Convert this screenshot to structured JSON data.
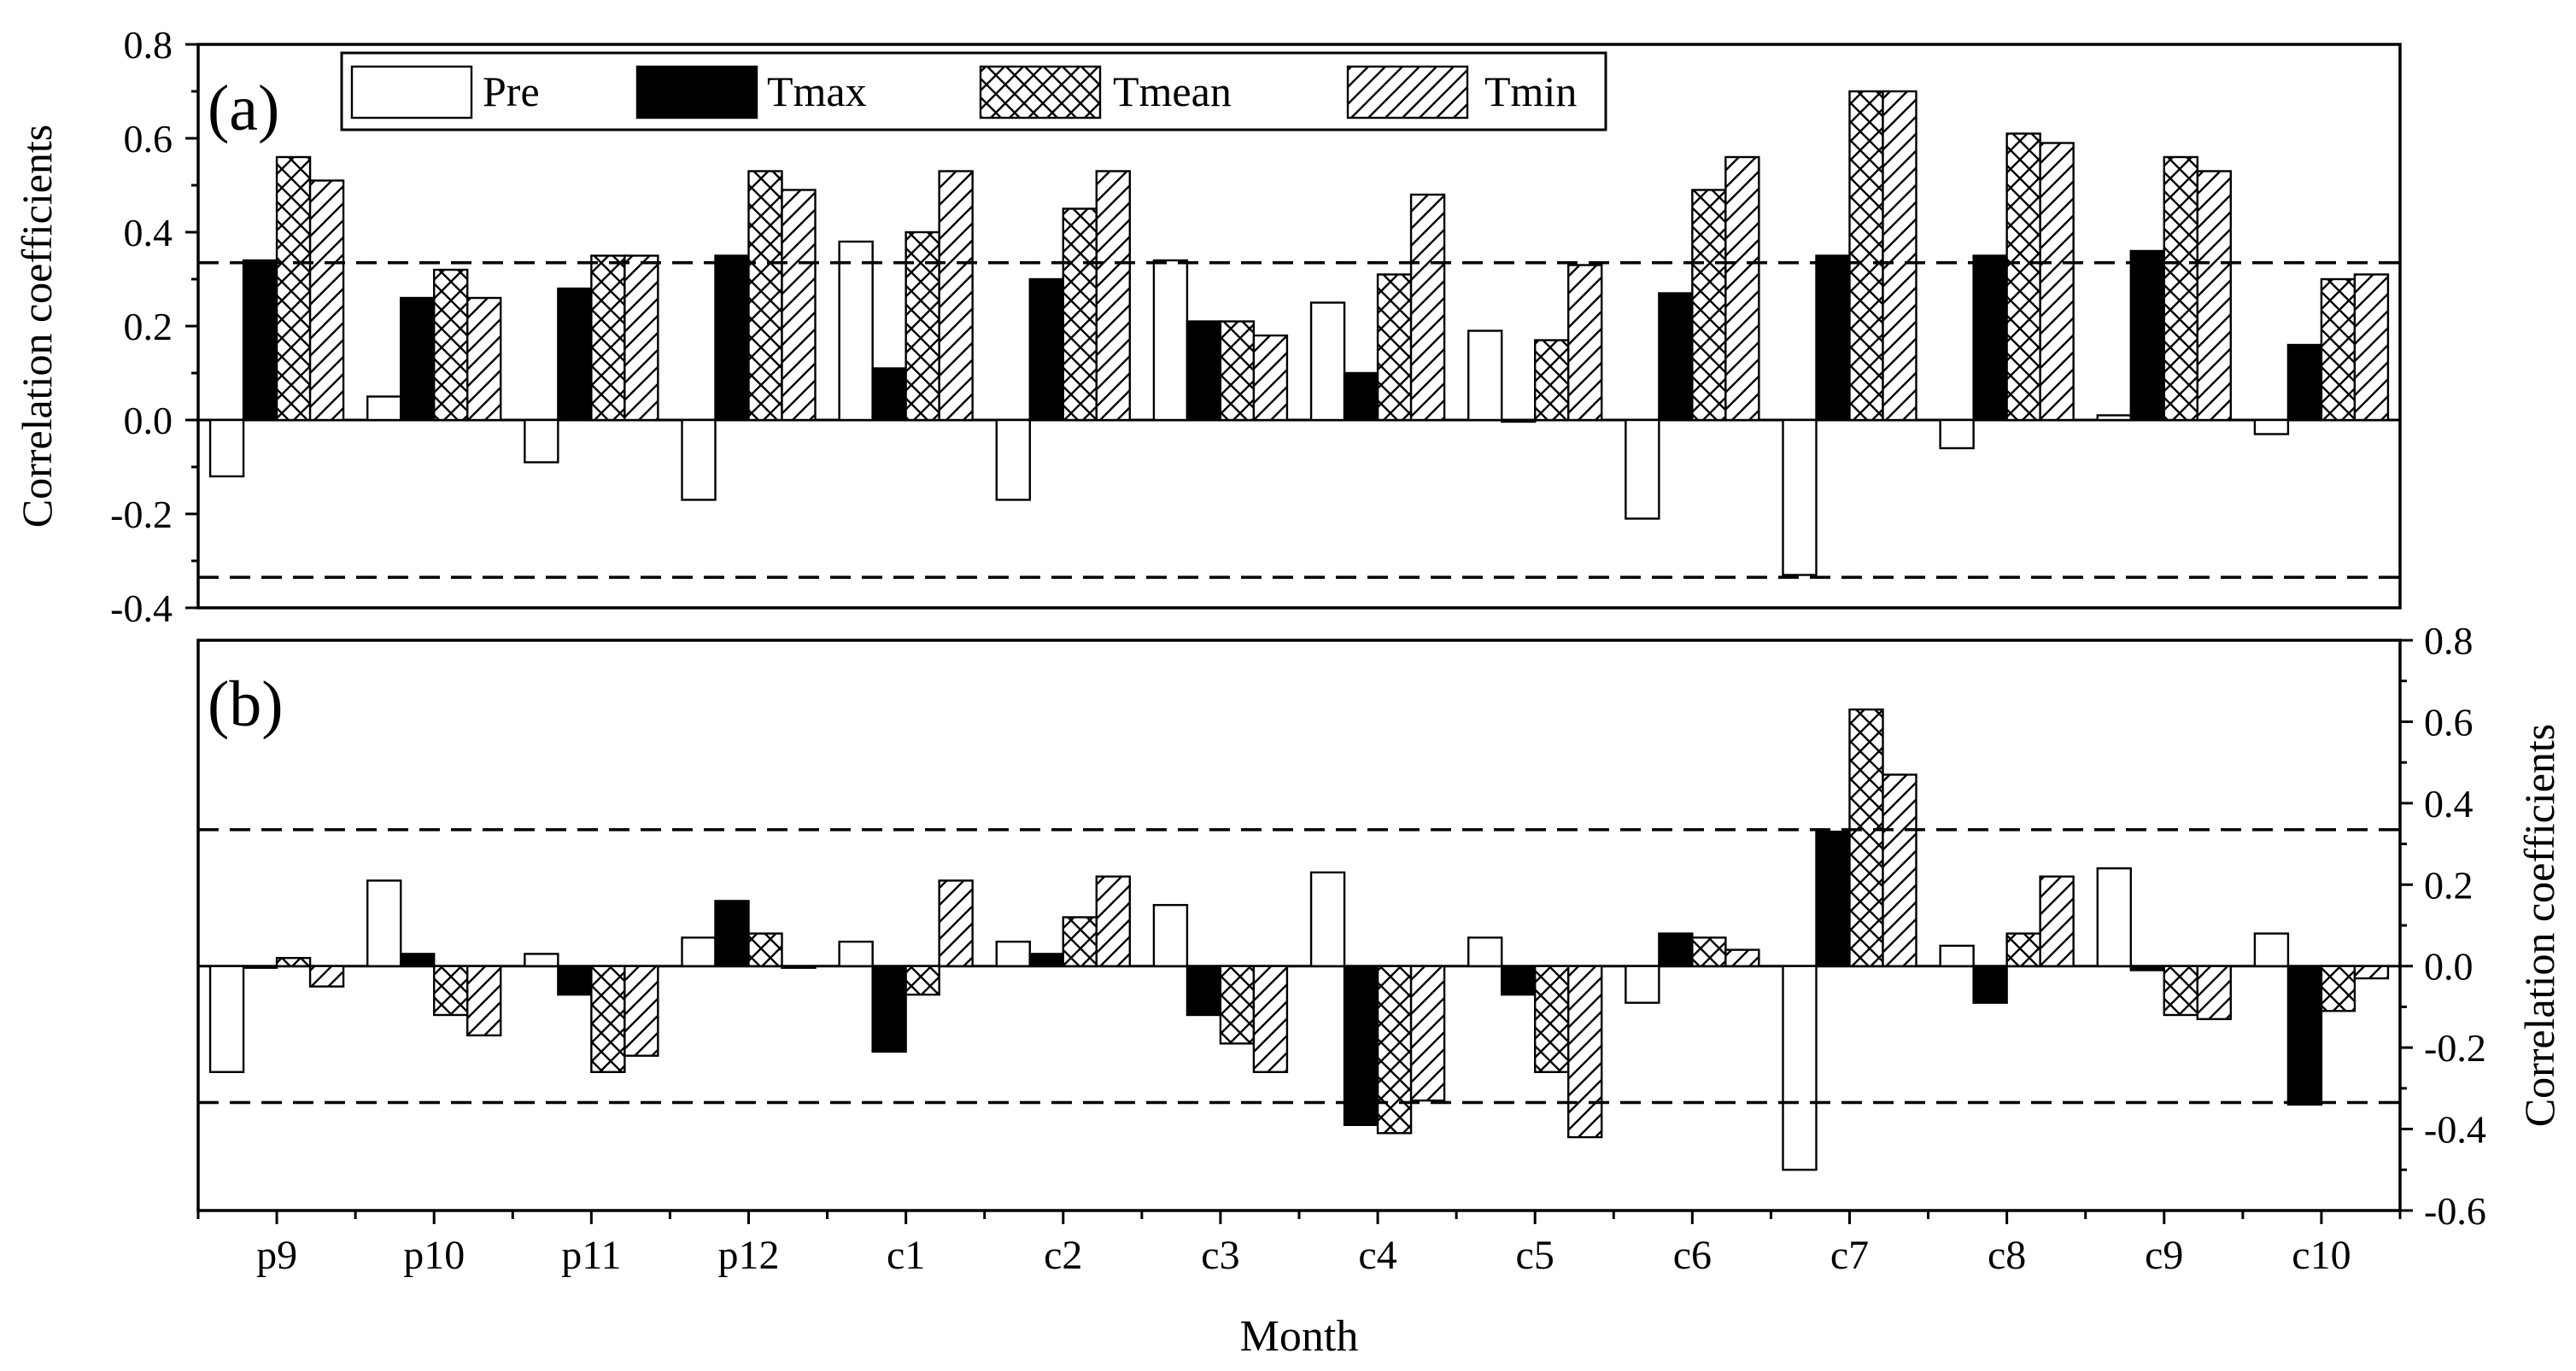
{
  "chart_data": [
    {
      "type": "bar",
      "panel_label": "(a)",
      "ylabel": "Correlation coefficients",
      "xlabel": "",
      "ylim": [
        -0.4,
        0.8
      ],
      "yticks": [
        "-0.4",
        "-0.2",
        "0.0",
        "0.2",
        "0.4",
        "0.6",
        "0.8"
      ],
      "y_axis_side": "left",
      "significance_lines": [
        0.335,
        -0.335
      ],
      "categories": [
        "p9",
        "p10",
        "p11",
        "p12",
        "c1",
        "c2",
        "c3",
        "c4",
        "c5",
        "c6",
        "c7",
        "c8",
        "c9",
        "c10"
      ],
      "legend_placement": "top-left",
      "series": [
        {
          "name": "Pre",
          "pattern": "white",
          "values": [
            -0.12,
            0.05,
            -0.09,
            -0.17,
            0.38,
            -0.17,
            0.34,
            0.25,
            0.19,
            -0.21,
            -0.33,
            -0.06,
            0.01,
            -0.03
          ]
        },
        {
          "name": "Tmax",
          "pattern": "black",
          "values": [
            0.34,
            0.26,
            0.28,
            0.35,
            0.11,
            0.3,
            0.21,
            0.1,
            0.0,
            0.27,
            0.35,
            0.35,
            0.36,
            0.16
          ]
        },
        {
          "name": "Tmean",
          "pattern": "crosshatch",
          "values": [
            0.56,
            0.32,
            0.35,
            0.53,
            0.4,
            0.45,
            0.21,
            0.31,
            0.17,
            0.49,
            0.7,
            0.61,
            0.56,
            0.3
          ]
        },
        {
          "name": "Tmin",
          "pattern": "diagonal",
          "values": [
            0.51,
            0.26,
            0.35,
            0.49,
            0.53,
            0.53,
            0.18,
            0.48,
            0.33,
            0.56,
            0.7,
            0.59,
            0.53,
            0.31
          ]
        }
      ]
    },
    {
      "type": "bar",
      "panel_label": "(b)",
      "ylabel": "Correlation coefficients",
      "xlabel": "Month",
      "ylim": [
        -0.6,
        0.8
      ],
      "yticks": [
        "-0.6",
        "-0.4",
        "-0.2",
        "0.0",
        "0.2",
        "0.4",
        "0.6",
        "0.8"
      ],
      "y_axis_side": "right",
      "significance_lines": [
        0.335,
        -0.335
      ],
      "categories": [
        "p9",
        "p10",
        "p11",
        "p12",
        "c1",
        "c2",
        "c3",
        "c4",
        "c5",
        "c6",
        "c7",
        "c8",
        "c9",
        "c10"
      ],
      "series": [
        {
          "name": "Pre",
          "pattern": "white",
          "values": [
            -0.26,
            0.21,
            0.03,
            0.07,
            0.06,
            0.06,
            0.15,
            0.23,
            0.07,
            -0.09,
            -0.5,
            0.05,
            0.24,
            0.08
          ]
        },
        {
          "name": "Tmax",
          "pattern": "black",
          "values": [
            0.0,
            0.03,
            -0.07,
            0.16,
            -0.21,
            0.03,
            -0.12,
            -0.39,
            -0.07,
            0.08,
            0.33,
            -0.09,
            -0.01,
            -0.34
          ]
        },
        {
          "name": "Tmean",
          "pattern": "crosshatch",
          "values": [
            0.02,
            -0.12,
            -0.26,
            0.08,
            -0.07,
            0.12,
            -0.19,
            -0.41,
            -0.26,
            0.07,
            0.63,
            0.08,
            -0.12,
            -0.11
          ]
        },
        {
          "name": "Tmin",
          "pattern": "diagonal",
          "values": [
            -0.05,
            -0.17,
            -0.22,
            0.0,
            0.21,
            0.22,
            -0.26,
            -0.33,
            -0.42,
            0.04,
            0.47,
            0.22,
            -0.13,
            -0.03
          ]
        }
      ]
    }
  ]
}
